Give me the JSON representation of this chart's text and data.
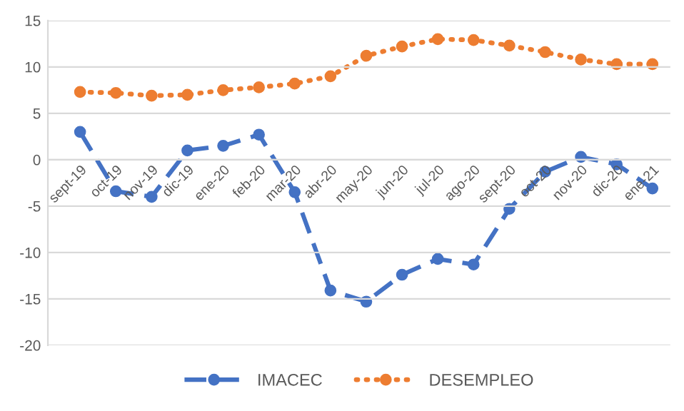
{
  "chart_data": {
    "type": "line",
    "categories": [
      "sept-19",
      "oct-19",
      "nov-19",
      "dic-19",
      "ene-20",
      "feb-20",
      "mar-20",
      "abr-20",
      "may-20",
      "jun-20",
      "jul-20",
      "ago-20",
      "sept-20",
      "oct-20",
      "nov-20",
      "dic-20",
      "ene-21"
    ],
    "series": [
      {
        "name": "IMACEC",
        "color": "#4472c4",
        "line_style": "dashed",
        "values": [
          3.0,
          -3.4,
          -4.0,
          1.0,
          1.5,
          2.7,
          -3.5,
          -14.1,
          -15.3,
          -12.4,
          -10.7,
          -11.3,
          -5.3,
          -1.3,
          0.3,
          -0.5,
          -3.1
        ]
      },
      {
        "name": "DESEMPLEO",
        "color": "#ed7d31",
        "line_style": "dotted",
        "values": [
          7.3,
          7.2,
          6.9,
          7.0,
          7.5,
          7.8,
          8.2,
          9.0,
          11.2,
          12.2,
          13.0,
          12.9,
          12.3,
          11.6,
          10.8,
          10.3,
          10.3
        ]
      }
    ],
    "ylim": [
      -20,
      15
    ],
    "yticks": [
      -20,
      -15,
      -10,
      -5,
      0,
      5,
      10,
      15
    ],
    "grid": "y",
    "legend": "bottom",
    "marker": "circle"
  }
}
